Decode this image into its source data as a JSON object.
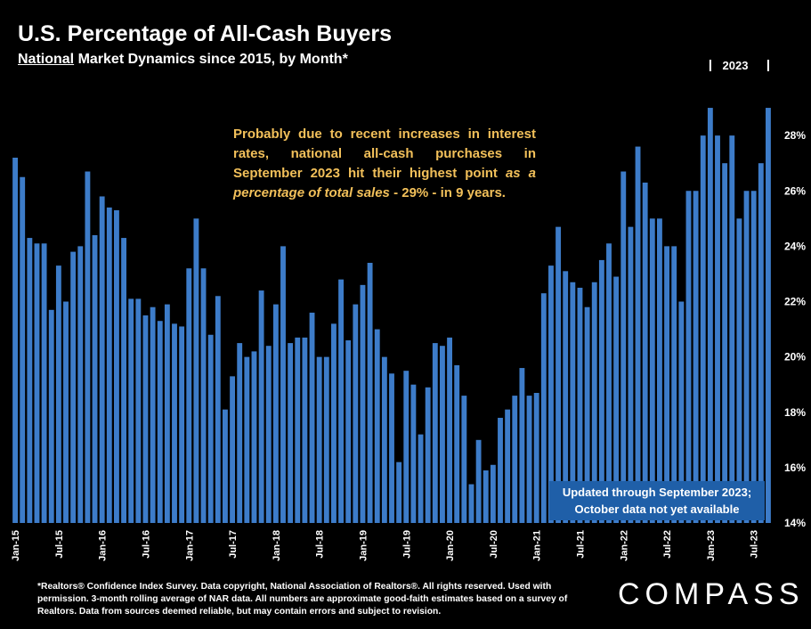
{
  "header": {
    "title": "U.S. Percentage of All-Cash Buyers",
    "subtitle_underlined": "National",
    "subtitle_rest": " Market Dynamics since 2015, by Month*"
  },
  "annotation": {
    "part1": "Probably due to recent increases in interest rates, national all-cash purchases in September 2023 hit their highest point ",
    "italic": "as a percentage of total sales",
    "part2": " - 29% - in 9 years."
  },
  "year_marker": "2023",
  "note": {
    "line1": "Updated through September 2023;",
    "line2": "October data not yet available"
  },
  "footer": "*Realtors® Confidence Index Survey. Data copyright, National Association of Realtors®. All rights reserved. Used with permission. 3-month rolling average of NAR data. All numbers are approximate good-faith estimates based on a survey of Realtors. Data from sources deemed reliable, but may contain errors and subject to revision.",
  "logo": "COMPASS",
  "colors": {
    "bar": "#3d7cc9",
    "annotation": "#f2c05a",
    "note_bg": "#1f5fa8",
    "background": "#000000"
  },
  "chart_data": {
    "type": "bar",
    "ylim": [
      14,
      30
    ],
    "yticks": [
      14,
      16,
      18,
      20,
      22,
      24,
      26,
      28
    ],
    "ytick_labels": [
      "14%",
      "16%",
      "18%",
      "20%",
      "22%",
      "24%",
      "26%",
      "28%"
    ],
    "xtick_labels": [
      "Jan-15",
      "Jul-15",
      "Jan-16",
      "Jul-16",
      "Jan-17",
      "Jul-17",
      "Jan-18",
      "Jul-18",
      "Jan-19",
      "Jul-19",
      "Jan-20",
      "Jul-20",
      "Jan-21",
      "Jul-21",
      "Jan-22",
      "Jul-22",
      "Jan-23",
      "Jul-23"
    ],
    "values": [
      27.2,
      26.5,
      24.3,
      24.1,
      24.1,
      21.7,
      23.3,
      22.0,
      23.8,
      24.0,
      26.7,
      24.4,
      25.8,
      25.4,
      25.3,
      24.3,
      22.1,
      22.1,
      21.5,
      21.8,
      21.3,
      21.9,
      21.2,
      21.1,
      23.2,
      25.0,
      23.2,
      20.8,
      22.2,
      18.1,
      19.3,
      20.5,
      20.0,
      20.2,
      22.4,
      20.4,
      21.9,
      24.0,
      20.5,
      20.7,
      20.7,
      21.6,
      20.0,
      20.0,
      21.2,
      22.8,
      20.6,
      21.9,
      22.6,
      23.4,
      21.0,
      20.0,
      19.4,
      16.2,
      19.5,
      19.0,
      17.2,
      18.9,
      20.5,
      20.4,
      20.7,
      19.7,
      18.6,
      15.4,
      17.0,
      15.9,
      16.1,
      17.8,
      18.1,
      18.6,
      19.6,
      18.6,
      18.7,
      22.3,
      23.3,
      24.7,
      23.1,
      22.7,
      22.5,
      21.8,
      22.7,
      23.5,
      24.1,
      22.9,
      26.7,
      24.7,
      27.6,
      26.3,
      25.0,
      25.0,
      24.0,
      24.0,
      22.0,
      26.0,
      26.0,
      28.0,
      29.0,
      28.0,
      27.0,
      28.0,
      25.0,
      26.0,
      26.0,
      27.0,
      29.0
    ]
  }
}
